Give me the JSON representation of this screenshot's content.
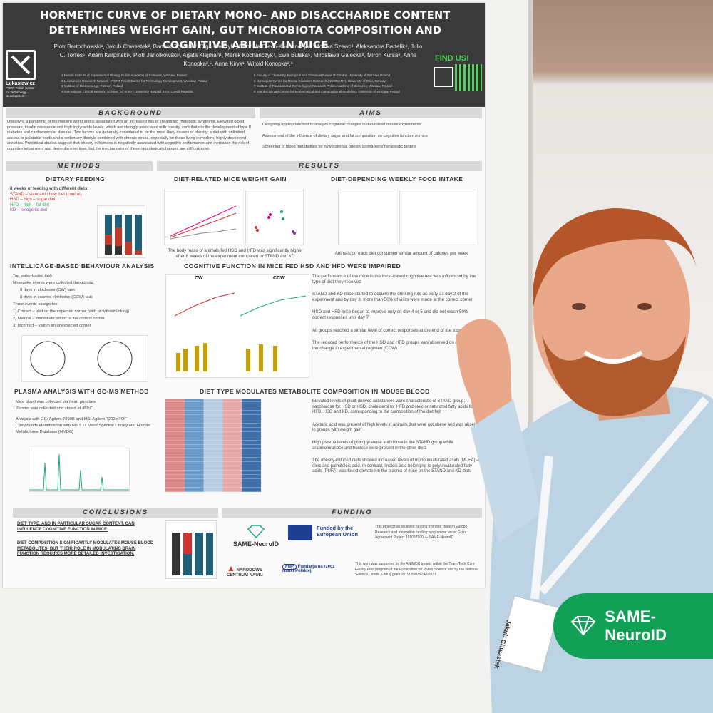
{
  "poster": {
    "title": "Hormetic curve of dietary mono- and disaccharide content determines weight gain, gut microbiota composition and cognitive ability in mice",
    "authors": "Piotr Bartochowski¹, Jakub Chwastek², Bartosz Zglinicki², Olga Pietrzyk², Gabriela Olech-Kochanczyk¹, Monika Szewc³, Aleksandra Bartelik⁴, Julio C. Torres⁵, Adam Karpinski⁵, Piotr Jaholkowski⁶, Agata Klejman¹, Marek Kochanczyk⁷, Ewa Bulska⁵, Miroslawa Galecka⁸, Miron Kursa⁸, Anna Konopka²,⁵, Anna Kiryk¹, Witold Konopka²,¹",
    "affiliations_left": [
      "1 Nencki Institute of Experimental Biology Polish Academy of Sciences, Warsaw, Poland",
      "2 Łukasiewicz Research Network - PORT Polish Center for Technology Development, Wrocław, Poland",
      "3 Institute of Microecology, Poznan, Poland",
      "4 International Clinical Research Center, St. Anne's University Hospital Brno, Czech Republic"
    ],
    "affiliations_right": [
      "5 Faculty of Chemistry, Biological and Chemical Research Centre, University of Warsaw, Poland",
      "6 Norwegian Centre for Mental Disorders Research (NORMENT), University of Oslo, Norway",
      "7 Institute of Fundamental Technological Research Polish Academy of Sciences, Warsaw, Poland",
      "8 Interdisciplinary Centre for Mathematical and Computational Modelling, University of Warsaw, Poland"
    ],
    "logo_text": "Łukasiewicz",
    "logo_sub": "PORT Polish Center for Technology Development",
    "find_us": "FIND US!",
    "sections": {
      "background": "BACKGROUND",
      "aims": "AIMS",
      "methods": "METHODS",
      "results": "RESULTS",
      "conclusions": "CONCLUSIONS",
      "funding": "FUNDING"
    },
    "background_text": "Obesity is a pandemic of the modern world and is associated with an increased risk of life-limiting metabolic syndrome. Elevated blood pressure, insulin resistance and high triglyceride levels, which are strongly associated with obesity, contribute to the development of type II diabetes and cardiovascular disease. Two factors are generally considered to be the most likely causes of obesity: a diet with unlimited access to palatable foods and a sedentary lifestyle combined with chronic stress, especially for those living in modern, highly developed societies. Preclinical studies suggest that obesity in humans is negatively associated with cognitive performance and increases the risk of cognitive impairment and dementia over time, but the mechanisms of these neurological changes are still unknown.",
    "aims": [
      "Designing appropriate test to analyze cognitive changes in diet-based mouse experiments",
      "Assessment of the influence of dietary sugar and fat composition on cognitive function in mice",
      "Screening of blood metabolites for new potential obesity biomarkers/therapeutic targets"
    ],
    "dietary_feeding": "DIETARY FEEDING",
    "diet_intro": "8 weeks of feeding with different diets:",
    "diets": [
      "STAND – standard chow diet (control)",
      "HSD – high – sugar diet",
      "HFD – high – fat diet",
      "KD – ketogenic diet"
    ],
    "weight_gain": "DIET-RELATED MICE WEIGHT GAIN",
    "food_intake": "DIET-DEPENDING WEEKLY FOOD INTAKE",
    "weight_caption": "The body mass of animals fed HSD and HFD was significantly higher after 8 weeks of the experiment compared to STAND and KD",
    "intake_caption": "Animals on each diet consumed similar amount of calories per week",
    "intellicage": "IntelliCage-based behaviour analysis",
    "intellicage_items": [
      "Tap water-based task",
      "Nosepoke events were collected throughout:",
      "9 days in clockwise (CW) task",
      "8 days in counter clockwise (CCW) task",
      "Three events categories:",
      "1) Correct – visit on the expected corner (with or without licking)",
      "2) Neutral – immediate return to the correct corner",
      "3) Incorrect – visit in an unexpected corner"
    ],
    "cognitive": "COGNITIVE FUNCTION IN MICE FED HSD AND HFD WERE IMPAIRED",
    "cognitive_points": [
      "The performance of the mice in the thirst-based cognitive test was influenced by the type of diet they received",
      "STAND and KD mice started to acquire the drinking rule as early as day 2 of the experiment and by day 3, more than 50% of visits were made at the correct corner",
      "HSD and HFD mice began to improve only on day 4 or 5 and did not reach 50% correct responses until day 7",
      "All groups reached a similar level of correct responses at the end of the experiment",
      "The reduced performance of the HSD and HFD groups was observed on day 1 after the change in experimental regimen (CCW)"
    ],
    "plasma": "PLASMA ANALYSIS WITH GC-MS METHOD",
    "plasma_items": [
      "Mice blood was collected via heart puncture",
      "Plasma was collected and stored at -80°C",
      "Analysis with GC: Agilent 7890B and MS: Agilent 7200 qTOF",
      "Compounds identification with NIST 11 Mass Spectral Library and Human Metabolome Database (HMDB)"
    ],
    "metabolite": "DIET TYPE MODULATES METABOLITE COMPOSITION IN MOUSE BLOOD",
    "metabolite_points": [
      "Elevated levels of plant-derived substances were characteristic of STAND group, saccharose for HSD or HSD, cholesterol for HFD and oleic or saturated fatty acids for HFD, HSD and KD, corresponding to the composition of the diet fed",
      "Aceturic acid was present at high levels in animals that were not obese and was absent in groups with weight gain",
      "High plasma levels of glucopyranose and ribose in the STAND group while arabinofuranose and fructose were present in the other diets",
      "The obesity-induced diets showed increased levels of monounsaturated acids (MUFA) – oleic and palmitoleic acid. In contrast, linoleic acid belonging to polyunsaturated fatty acids (PUFA) was found elevated in the plasma of mice on the STAND and KD diets"
    ],
    "conclusions": [
      "Diet type, and in particular sugar content, can influence cognitive function in mice.",
      "Diet composition significantly modulates mouse blood metabolites, but their role in modulating brain function requires more detailed investigation."
    ],
    "funding_items": {
      "same": "SAME-NeuroID",
      "eu": "Funded by the European Union",
      "ncn": "NARODOWE CENTRUM NAUKI",
      "fnp": "Fundacja na rzecz Nauki Polskiej",
      "eu_text": "This project has received funding from the Horizon Europe Research and Innovation funding programme under Grant Agreement Project 101087900 — SAME-NeuroID",
      "fnp_text": "This work was supported by the ANIMOB project within the Team Tech Core Facility Plus program of the Foundation for Polish Science and by the National Science Centre (UMO) grant 2019/35/B/NZ4/02831"
    },
    "chart_labels": {
      "cw": "CW",
      "ccw": "CCW"
    }
  },
  "badge": {
    "label": "SAME-NeuroID",
    "color": "#12a057"
  },
  "name_card": {
    "name": "Jakub Chwastek"
  },
  "colors": {
    "poster_header": "#3a3a3a",
    "accent_green": "#45d24e",
    "section_bar": "#d9d9d9"
  }
}
